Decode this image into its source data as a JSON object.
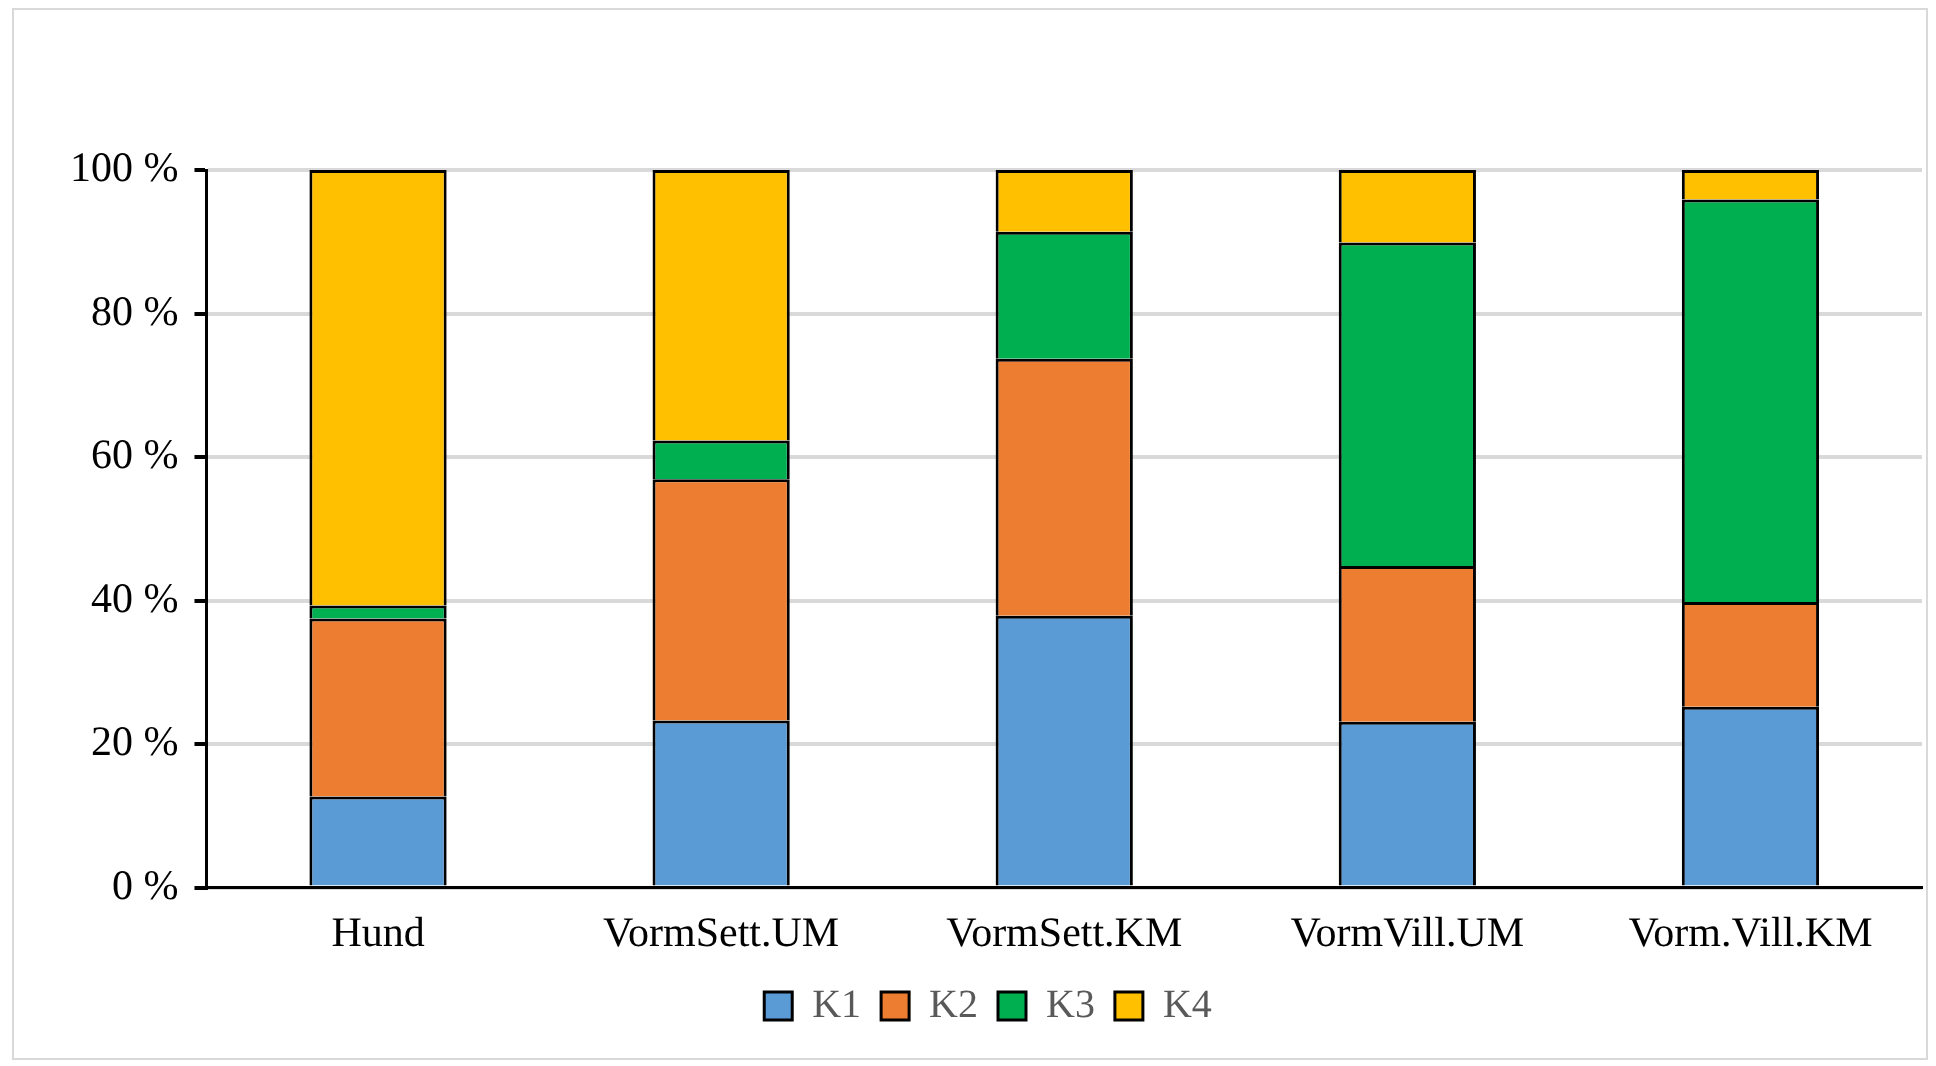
{
  "chart_data": {
    "type": "bar",
    "stacked": true,
    "categories": [
      "Hund",
      "VormSett.UM",
      "VormSett.KM",
      "VormVill.UM",
      "Vorm.Vill.KM"
    ],
    "series": [
      {
        "name": "K1",
        "color": "#5b9bd5",
        "values": [
          12.7,
          23.3,
          37.9,
          23.1,
          25.2
        ]
      },
      {
        "name": "K2",
        "color": "#ed7d31",
        "values": [
          24.8,
          33.6,
          35.8,
          21.7,
          14.6
        ]
      },
      {
        "name": "K3",
        "color": "#00b050",
        "values": [
          1.8,
          5.4,
          17.7,
          45.1,
          56.1
        ]
      },
      {
        "name": "K4",
        "color": "#ffc000",
        "values": [
          60.7,
          37.7,
          8.6,
          10.1,
          4.1
        ]
      }
    ],
    "ylim": [
      0,
      100
    ],
    "yticks": [
      {
        "value": 0,
        "label": "0 %"
      },
      {
        "value": 20,
        "label": "20 %"
      },
      {
        "value": 40,
        "label": "40 %"
      },
      {
        "value": 60,
        "label": "60 %"
      },
      {
        "value": 80,
        "label": "80 %"
      },
      {
        "value": 100,
        "label": "100 %"
      }
    ],
    "grid": "y",
    "legend": "bottom"
  }
}
